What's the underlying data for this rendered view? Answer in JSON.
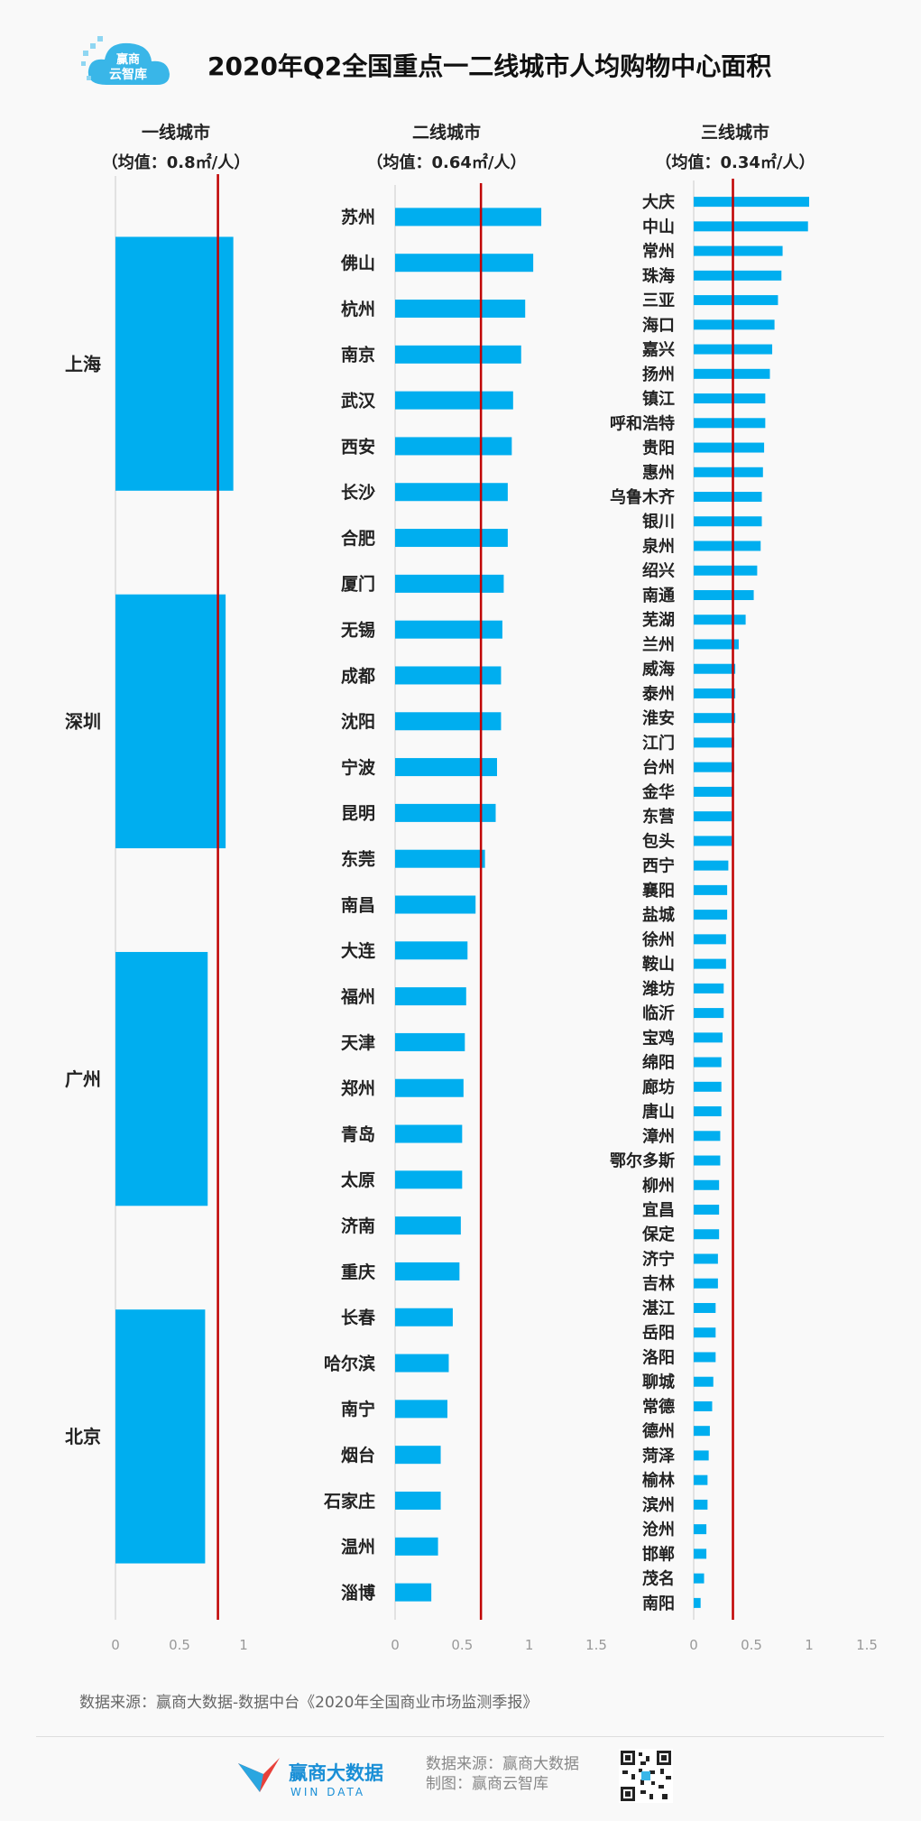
{
  "header": {
    "title": "2020年Q2全国重点一二线城市人均购物中心面积",
    "brand_top": "赢商",
    "brand_bottom": "云智库"
  },
  "colors": {
    "bar": "#00aeef",
    "mean_line": "#c00000",
    "axis": "#cccccc"
  },
  "chart_data": [
    {
      "type": "bar",
      "orientation": "horizontal",
      "title": "一线城市",
      "subtitle": "（均值：0.8㎡/人）",
      "mean": 0.8,
      "xlim": [
        0,
        1
      ],
      "xticks": [
        "0",
        "0.5",
        "1"
      ],
      "categories": [
        "上海",
        "深圳",
        "广州",
        "北京"
      ],
      "values": [
        0.92,
        0.86,
        0.72,
        0.7
      ]
    },
    {
      "type": "bar",
      "orientation": "horizontal",
      "title": "二线城市",
      "subtitle": "（均值：0.64㎡/人）",
      "mean": 0.64,
      "xlim": [
        0,
        1.5
      ],
      "xticks": [
        "0",
        "0.5",
        "1",
        "1.5"
      ],
      "categories": [
        "苏州",
        "佛山",
        "杭州",
        "南京",
        "武汉",
        "西安",
        "长沙",
        "合肥",
        "厦门",
        "无锡",
        "成都",
        "沈阳",
        "宁波",
        "昆明",
        "东莞",
        "南昌",
        "大连",
        "福州",
        "天津",
        "郑州",
        "青岛",
        "太原",
        "济南",
        "重庆",
        "长春",
        "哈尔滨",
        "南宁",
        "烟台",
        "石家庄",
        "温州",
        "淄博"
      ],
      "values": [
        1.09,
        1.03,
        0.97,
        0.94,
        0.88,
        0.87,
        0.84,
        0.84,
        0.81,
        0.8,
        0.79,
        0.79,
        0.76,
        0.75,
        0.67,
        0.6,
        0.54,
        0.53,
        0.52,
        0.51,
        0.5,
        0.5,
        0.49,
        0.48,
        0.43,
        0.4,
        0.39,
        0.34,
        0.34,
        0.32,
        0.27
      ]
    },
    {
      "type": "bar",
      "orientation": "horizontal",
      "title": "三线城市",
      "subtitle": "（均值：0.34㎡/人）",
      "mean": 0.34,
      "xlim": [
        0,
        1.5
      ],
      "xticks": [
        "0",
        "0.5",
        "1",
        "1.5"
      ],
      "categories": [
        "大庆",
        "中山",
        "常州",
        "珠海",
        "三亚",
        "海口",
        "嘉兴",
        "扬州",
        "镇江",
        "呼和浩特",
        "贵阳",
        "惠州",
        "乌鲁木齐",
        "银川",
        "泉州",
        "绍兴",
        "南通",
        "芜湖",
        "兰州",
        "威海",
        "泰州",
        "淮安",
        "江门",
        "台州",
        "金华",
        "东营",
        "包头",
        "西宁",
        "襄阳",
        "盐城",
        "徐州",
        "鞍山",
        "潍坊",
        "临沂",
        "宝鸡",
        "绵阳",
        "廊坊",
        "唐山",
        "漳州",
        "鄂尔多斯",
        "柳州",
        "宜昌",
        "保定",
        "济宁",
        "吉林",
        "湛江",
        "岳阳",
        "洛阳",
        "聊城",
        "常德",
        "德州",
        "菏泽",
        "榆林",
        "滨州",
        "沧州",
        "邯郸",
        "茂名",
        "南阳"
      ],
      "values": [
        1.0,
        0.99,
        0.77,
        0.76,
        0.73,
        0.7,
        0.68,
        0.66,
        0.62,
        0.62,
        0.61,
        0.6,
        0.59,
        0.59,
        0.58,
        0.55,
        0.52,
        0.45,
        0.39,
        0.36,
        0.36,
        0.36,
        0.35,
        0.35,
        0.34,
        0.33,
        0.33,
        0.3,
        0.29,
        0.29,
        0.28,
        0.28,
        0.26,
        0.26,
        0.25,
        0.24,
        0.24,
        0.24,
        0.23,
        0.23,
        0.22,
        0.22,
        0.22,
        0.21,
        0.21,
        0.19,
        0.19,
        0.19,
        0.17,
        0.16,
        0.14,
        0.13,
        0.12,
        0.12,
        0.11,
        0.11,
        0.09,
        0.06
      ]
    }
  ],
  "footer": {
    "source": "数据来源：赢商大数据-数据中台《2020年全国商业市场监测季报》",
    "brand_cn": "赢商大数据",
    "brand_en": "WIN DATA",
    "credit_source": "数据来源：赢商大数据",
    "credit_made": "制图：赢商云智库"
  }
}
